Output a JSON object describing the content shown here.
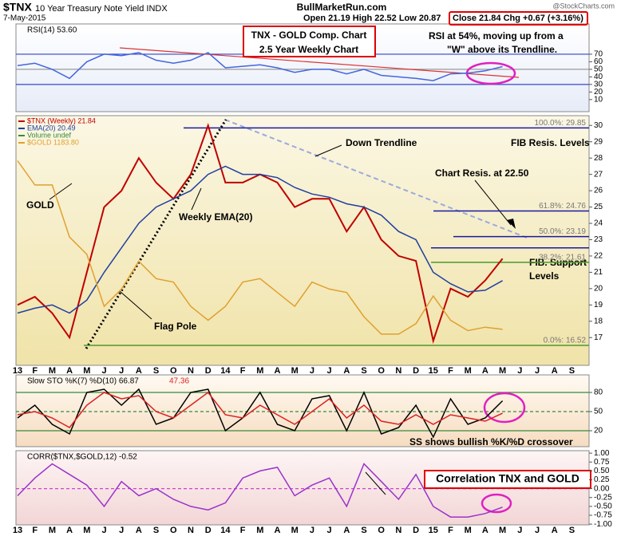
{
  "header": {
    "symbol": "$TNX",
    "name": "10 Year Treasury Note Yield INDX",
    "date": "7-May-2015",
    "site": "BullMarketRun.com",
    "ohl": "Open 21.19 High 22.52 Low 20.87",
    "close": "Close 21.84 Chg +0.67 (+3.16%)",
    "credit": "@StockCharts.com"
  },
  "chart_data": [
    {
      "type": "line",
      "title": "RSI(14) 53.60",
      "ylim": [
        -6,
        110
      ],
      "yticks": [
        10,
        20,
        30,
        40,
        50,
        60,
        70
      ],
      "hlines": [
        {
          "value": 70,
          "color": "#3344cc"
        },
        {
          "value": 50,
          "color": "#999999"
        },
        {
          "value": 30,
          "color": "#3344cc"
        }
      ],
      "annotations": [
        "TNX - GOLD Comp. Chart",
        "2.5 Year Weekly Chart",
        "RSI at 54%, moving up from a",
        "\"W\" above its Trendline."
      ],
      "series": [
        {
          "color": "#4466dd",
          "values": [
            55,
            58,
            50,
            38,
            60,
            70,
            68,
            72,
            62,
            58,
            62,
            72,
            52,
            54,
            56,
            52,
            46,
            50,
            50,
            44,
            50,
            42,
            40,
            38,
            35,
            44,
            45,
            48,
            53.6,
            null,
            null,
            null,
            null
          ]
        }
      ]
    },
    {
      "type": "line",
      "categories": [
        "13",
        "F",
        "M",
        "A",
        "M",
        "J",
        "J",
        "A",
        "S",
        "O",
        "N",
        "D",
        "14",
        "F",
        "M",
        "A",
        "M",
        "J",
        "J",
        "A",
        "S",
        "O",
        "N",
        "D",
        "15",
        "F",
        "M",
        "A",
        "M",
        "J",
        "J",
        "A",
        "S"
      ],
      "ylim": [
        15.3,
        30.6
      ],
      "yticks": [
        17,
        18,
        19,
        20,
        21,
        22,
        23,
        24,
        25,
        26,
        27,
        28,
        29,
        30
      ],
      "y2lim": [
        1080,
        1800
      ],
      "legend_extra": "Volume undef",
      "levels": [
        {
          "value": 29.85,
          "label": "100.0%: 29.85",
          "color": "#1a1aa0"
        },
        {
          "value": 24.76,
          "label": "61.8%: 24.76",
          "color": "#1a1aa0"
        },
        {
          "value": 23.19,
          "label": "50.0%: 23.19",
          "color": "#1a1aa0"
        },
        {
          "value": 22.5,
          "color": "#1a1aa0"
        },
        {
          "value": 21.61,
          "label": "38.2%: 21.61",
          "color": "#4a9a2a"
        },
        {
          "value": 16.52,
          "label": "0.0%: 16.52",
          "color": "#4a9a2a"
        }
      ],
      "annotations": [
        "Down Trendline",
        "FIB Resis. Levels",
        "Chart Resis. at 22.50",
        "GOLD",
        "Weekly EMA(20)",
        "Flag Pole",
        "FIB. Support",
        "Levels"
      ],
      "series": [
        {
          "name": "$TNX (Weekly) 21.84",
          "color": "#c00000",
          "values": [
            19.0,
            19.5,
            18.5,
            17.0,
            21.0,
            25.0,
            26.0,
            28.0,
            26.5,
            25.5,
            27.0,
            30.0,
            26.5,
            26.5,
            27.0,
            26.5,
            25.0,
            25.5,
            25.5,
            23.5,
            25.0,
            23.0,
            22.0,
            21.7,
            16.8,
            20.0,
            19.5,
            20.5,
            21.84,
            null,
            null,
            null,
            null
          ]
        },
        {
          "name": "EMA(20) 20.49",
          "color": "#2040a0",
          "values": [
            18.5,
            18.8,
            19.0,
            18.5,
            19.3,
            21.0,
            22.5,
            24.0,
            25.0,
            25.5,
            26.0,
            27.0,
            27.5,
            27.0,
            27.0,
            26.8,
            26.2,
            25.8,
            25.6,
            25.2,
            25.0,
            24.5,
            23.5,
            23.0,
            21.0,
            20.3,
            19.8,
            19.9,
            20.49,
            null,
            null,
            null,
            null
          ]
        },
        {
          "name": "$GOLD 1183.80",
          "color": "#e0a030",
          "axis": "y2",
          "values": [
            1670,
            1600,
            1600,
            1450,
            1400,
            1250,
            1300,
            1380,
            1330,
            1320,
            1250,
            1210,
            1250,
            1320,
            1330,
            1290,
            1250,
            1320,
            1300,
            1290,
            1220,
            1170,
            1170,
            1200,
            1280,
            1210,
            1180,
            1190,
            1183.8,
            null,
            null,
            null,
            null
          ]
        }
      ]
    },
    {
      "type": "line",
      "ylim": [
        -5,
        107.5
      ],
      "yticks": [
        20,
        50,
        80
      ],
      "hlines": [
        {
          "value": 80,
          "color": "#3a8a3a"
        },
        {
          "value": 50,
          "color": "#3a8a3a",
          "dashed": true
        },
        {
          "value": 20,
          "color": "#3a8a3a"
        }
      ],
      "annotations": [
        "SS shows bullish %K/%D crossover"
      ],
      "series": [
        {
          "name": "Slow STO %K(7) %D(10) 66.87",
          "color": "#000000",
          "values": [
            40,
            60,
            30,
            15,
            80,
            85,
            60,
            85,
            30,
            40,
            80,
            85,
            20,
            40,
            80,
            30,
            20,
            70,
            75,
            20,
            80,
            15,
            25,
            60,
            10,
            70,
            30,
            40,
            66.87,
            null,
            null,
            null,
            null
          ]
        },
        {
          "name": "47.36",
          "color": "#dd2020",
          "values": [
            45,
            50,
            40,
            25,
            60,
            80,
            70,
            75,
            50,
            40,
            60,
            80,
            45,
            40,
            60,
            45,
            30,
            50,
            70,
            40,
            60,
            35,
            30,
            45,
            30,
            45,
            40,
            35,
            47.36,
            null,
            null,
            null,
            null
          ]
        }
      ]
    },
    {
      "type": "line",
      "title": "CORR($TNX,$GOLD,12) -0.52",
      "categories": [
        "13",
        "F",
        "M",
        "A",
        "M",
        "J",
        "J",
        "A",
        "S",
        "O",
        "N",
        "D",
        "14",
        "F",
        "M",
        "A",
        "M",
        "J",
        "J",
        "A",
        "S",
        "O",
        "N",
        "D",
        "15",
        "F",
        "M",
        "A",
        "M",
        "J",
        "J",
        "A",
        "S"
      ],
      "ylim": [
        -1.02,
        1.07
      ],
      "yticks": [
        {
          "value": 1,
          "label": "1.00"
        },
        {
          "value": 0.75,
          "label": "0.75"
        },
        {
          "value": 0.5,
          "label": "0.50"
        },
        {
          "value": 0.25,
          "label": "0.25"
        },
        {
          "value": 0,
          "label": "0.00"
        },
        {
          "value": -0.25,
          "label": "-0.25"
        },
        {
          "value": -0.5,
          "label": "-0.50"
        },
        {
          "value": -0.75,
          "label": "-0.75"
        },
        {
          "value": -1,
          "label": "-1.00"
        }
      ],
      "hlines": [
        {
          "value": 0,
          "color": "#cc44cc",
          "dashed": true
        }
      ],
      "annotations": [
        "Correlation TNX and GOLD"
      ],
      "series": [
        {
          "color": "#9933cc",
          "values": [
            -0.2,
            0.3,
            0.7,
            0.4,
            0.1,
            -0.5,
            0.2,
            -0.2,
            0.0,
            -0.3,
            -0.5,
            -0.6,
            -0.4,
            0.3,
            0.5,
            0.6,
            -0.2,
            0.1,
            0.3,
            -0.5,
            0.7,
            0.2,
            -0.3,
            0.4,
            -0.5,
            -0.8,
            -0.8,
            -0.7,
            -0.52,
            null,
            null,
            null,
            null
          ]
        }
      ]
    }
  ]
}
